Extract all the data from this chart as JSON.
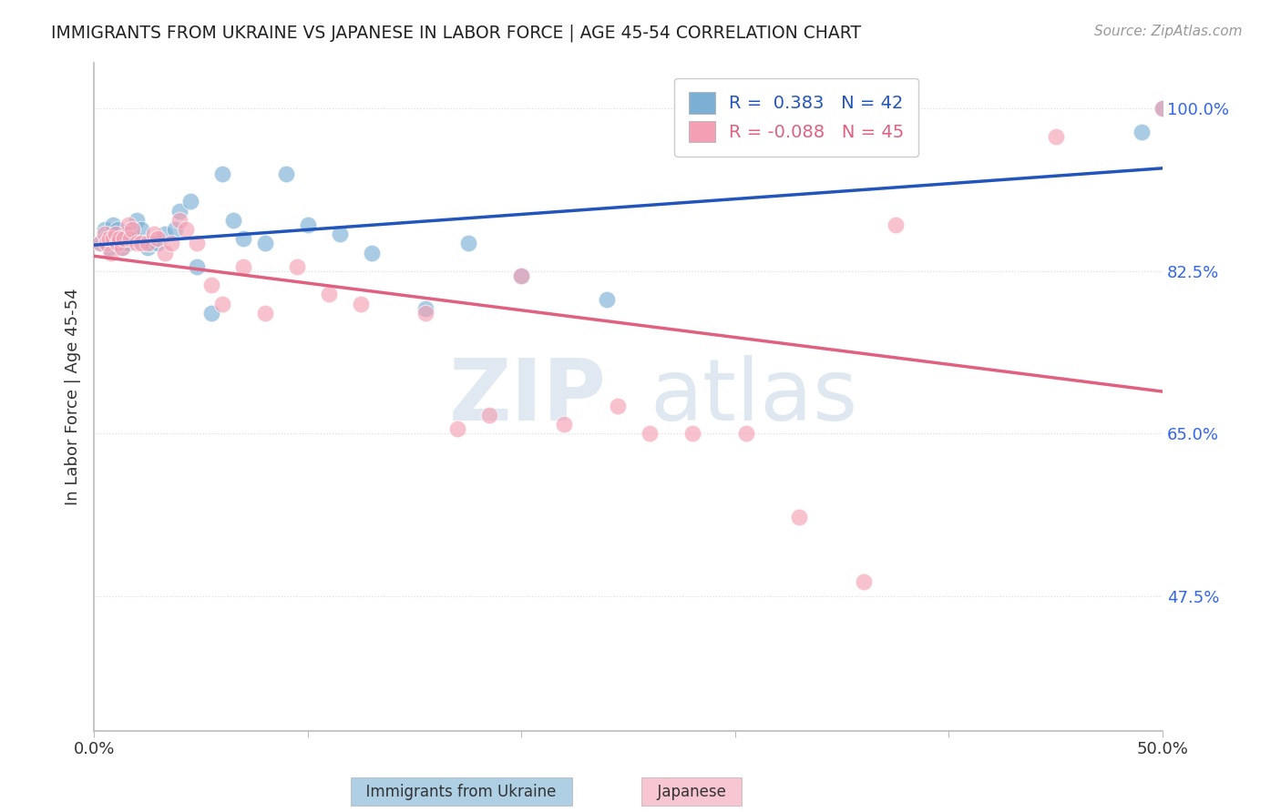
{
  "title": "IMMIGRANTS FROM UKRAINE VS JAPANESE IN LABOR FORCE | AGE 45-54 CORRELATION CHART",
  "source": "Source: ZipAtlas.com",
  "ylabel": "In Labor Force | Age 45-54",
  "xlim": [
    0.0,
    0.5
  ],
  "ylim": [
    0.33,
    1.05
  ],
  "xticks": [
    0.0,
    0.1,
    0.2,
    0.3,
    0.4,
    0.5
  ],
  "xticklabels": [
    "0.0%",
    "",
    "",
    "",
    "",
    "50.0%"
  ],
  "yticks_right": [
    0.475,
    0.65,
    0.825,
    1.0
  ],
  "ytick_labels_right": [
    "47.5%",
    "65.0%",
    "82.5%",
    "100.0%"
  ],
  "legend_ukraine_R": "0.383",
  "legend_ukraine_N": "42",
  "legend_japanese_R": "-0.088",
  "legend_japanese_N": "45",
  "ukraine_color": "#7BAFD4",
  "japanese_color": "#F4A0B4",
  "ukraine_line_color": "#2255BB",
  "japanese_line_color": "#E06080",
  "ukraine_scatter_x": [
    0.003,
    0.005,
    0.006,
    0.007,
    0.008,
    0.009,
    0.01,
    0.011,
    0.012,
    0.013,
    0.014,
    0.015,
    0.016,
    0.017,
    0.018,
    0.019,
    0.02,
    0.022,
    0.023,
    0.025,
    0.027,
    0.03,
    0.033,
    0.038,
    0.04,
    0.045,
    0.048,
    0.055,
    0.06,
    0.065,
    0.07,
    0.08,
    0.09,
    0.1,
    0.115,
    0.13,
    0.155,
    0.175,
    0.2,
    0.24,
    0.49,
    0.5
  ],
  "ukraine_scatter_y": [
    0.855,
    0.87,
    0.86,
    0.85,
    0.865,
    0.875,
    0.855,
    0.87,
    0.86,
    0.85,
    0.855,
    0.865,
    0.855,
    0.865,
    0.86,
    0.86,
    0.88,
    0.87,
    0.855,
    0.85,
    0.855,
    0.855,
    0.865,
    0.87,
    0.89,
    0.9,
    0.83,
    0.78,
    0.93,
    0.88,
    0.86,
    0.855,
    0.93,
    0.875,
    0.865,
    0.845,
    0.785,
    0.855,
    0.82,
    0.795,
    0.975,
    1.0
  ],
  "japanese_scatter_x": [
    0.003,
    0.005,
    0.006,
    0.007,
    0.008,
    0.009,
    0.01,
    0.011,
    0.012,
    0.013,
    0.014,
    0.016,
    0.017,
    0.018,
    0.02,
    0.022,
    0.025,
    0.028,
    0.03,
    0.033,
    0.036,
    0.04,
    0.043,
    0.048,
    0.055,
    0.06,
    0.07,
    0.08,
    0.095,
    0.11,
    0.125,
    0.155,
    0.17,
    0.185,
    0.2,
    0.22,
    0.245,
    0.26,
    0.28,
    0.305,
    0.33,
    0.36,
    0.375,
    0.45,
    0.5
  ],
  "japanese_scatter_y": [
    0.855,
    0.865,
    0.855,
    0.86,
    0.845,
    0.86,
    0.865,
    0.855,
    0.86,
    0.85,
    0.86,
    0.875,
    0.86,
    0.87,
    0.855,
    0.855,
    0.855,
    0.865,
    0.86,
    0.845,
    0.855,
    0.88,
    0.87,
    0.855,
    0.81,
    0.79,
    0.83,
    0.78,
    0.83,
    0.8,
    0.79,
    0.78,
    0.655,
    0.67,
    0.82,
    0.66,
    0.68,
    0.65,
    0.65,
    0.65,
    0.56,
    0.49,
    0.875,
    0.97,
    1.0
  ],
  "watermark_zip": "ZIP",
  "watermark_atlas": "atlas",
  "background_color": "#FFFFFF",
  "grid_color": "#DDDDDD"
}
